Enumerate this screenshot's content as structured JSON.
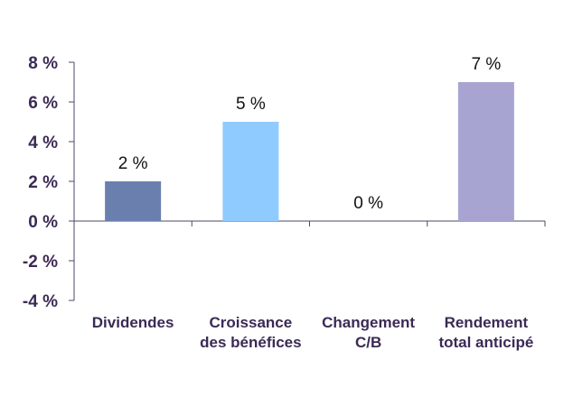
{
  "chart_data": {
    "type": "bar",
    "categories": [
      [
        "Dividendes"
      ],
      [
        "Croissance",
        "des bénéfices"
      ],
      [
        "Changement",
        "C/B"
      ],
      [
        "Rendement",
        "total anticipé"
      ]
    ],
    "values": [
      2,
      5,
      0,
      7
    ],
    "data_labels": [
      "2 %",
      "5 %",
      "0 %",
      "7 %"
    ],
    "colors": [
      "#6a7fae",
      "#8fcbff",
      "#c9c3e2",
      "#a8a4d2"
    ],
    "title": "",
    "xlabel": "",
    "ylabel": "",
    "ylim": [
      -4,
      8
    ],
    "yticks": [
      8,
      6,
      4,
      2,
      0,
      -2,
      -4
    ],
    "ytick_labels": [
      "8 %",
      "6 %",
      "4 %",
      "2 %",
      "0 %",
      "-2 %",
      "-4 %"
    ],
    "grid": false,
    "legend": "none",
    "axis_color": "#4a4a6a"
  }
}
